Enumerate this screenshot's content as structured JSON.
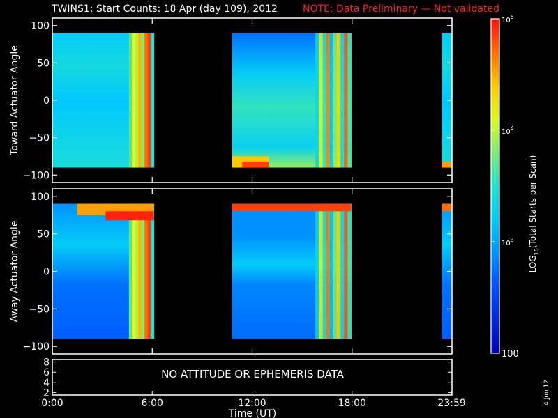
{
  "title": "TWINS1: Start Counts: 18 Apr (day 109), 2012",
  "note": "NOTE: Data Preliminary — Not validated",
  "date_stamp": "4 Jun 12",
  "no_data_message": "NO ATTITUDE OR EPHEMERIS DATA",
  "colors": {
    "note": "#ff2020",
    "axes": "#ffffff",
    "background": "#000000"
  },
  "chart_data": [
    {
      "type": "heatmap",
      "ylabel": "Toward Actuator Angle",
      "ylim": [
        -110,
        110
      ],
      "yticks": [
        100,
        50,
        0,
        -50,
        -100
      ],
      "xlim": [
        0,
        24
      ],
      "data_intervals_ut": [
        [
          0,
          6.1
        ],
        [
          10.8,
          17.95
        ],
        [
          23.4,
          24
        ]
      ],
      "value_range_log10": [
        2,
        5
      ],
      "features": [
        "high-count band (~10^4.5-10^5) from 4.6 to 6.1 UT across all angles",
        "enhanced counts below -60 deg from 10.8 to 13.0 UT",
        "vertical enhancements 15.8-17.9 UT"
      ]
    },
    {
      "type": "heatmap",
      "ylabel": "Away Actuator Angle",
      "ylim": [
        -110,
        110
      ],
      "yticks": [
        100,
        50,
        0,
        -50,
        -100
      ],
      "xlim": [
        0,
        24
      ],
      "data_intervals_ut": [
        [
          0,
          6.1
        ],
        [
          10.8,
          17.95
        ],
        [
          23.4,
          24
        ]
      ],
      "value_range_log10": [
        2,
        5
      ],
      "features": [
        "high-count band above 80 deg from 1.5 to 6.1 UT",
        "high-count band above 80 deg from 10.8 to 17.95 UT and 23.4-24 UT",
        "vertical enhancements 4.6-6.1 UT and 15.8-17.9 UT"
      ]
    },
    {
      "type": "line",
      "ylim": [
        1.5,
        8.5
      ],
      "yticks": [
        8,
        6,
        4,
        2
      ],
      "xlim": [
        0,
        24
      ],
      "xlabel": "Time (UT)",
      "xticks": [
        "0:00",
        "6:00",
        "12:00",
        "18:00",
        "23:59"
      ],
      "series": []
    }
  ],
  "colorbar": {
    "label_prefix": "LOG",
    "label_sub": "10",
    "label_suffix": "(Total Starts per Scan)",
    "ticks": [
      {
        "base": "10",
        "exp": "5",
        "value": 100000
      },
      {
        "base": "10",
        "exp": "4",
        "value": 10000
      },
      {
        "base": "10",
        "exp": "3",
        "value": 1000
      },
      {
        "base": "100",
        "exp": "",
        "value": 100
      }
    ],
    "range": [
      100,
      100000
    ],
    "scale": "log"
  }
}
